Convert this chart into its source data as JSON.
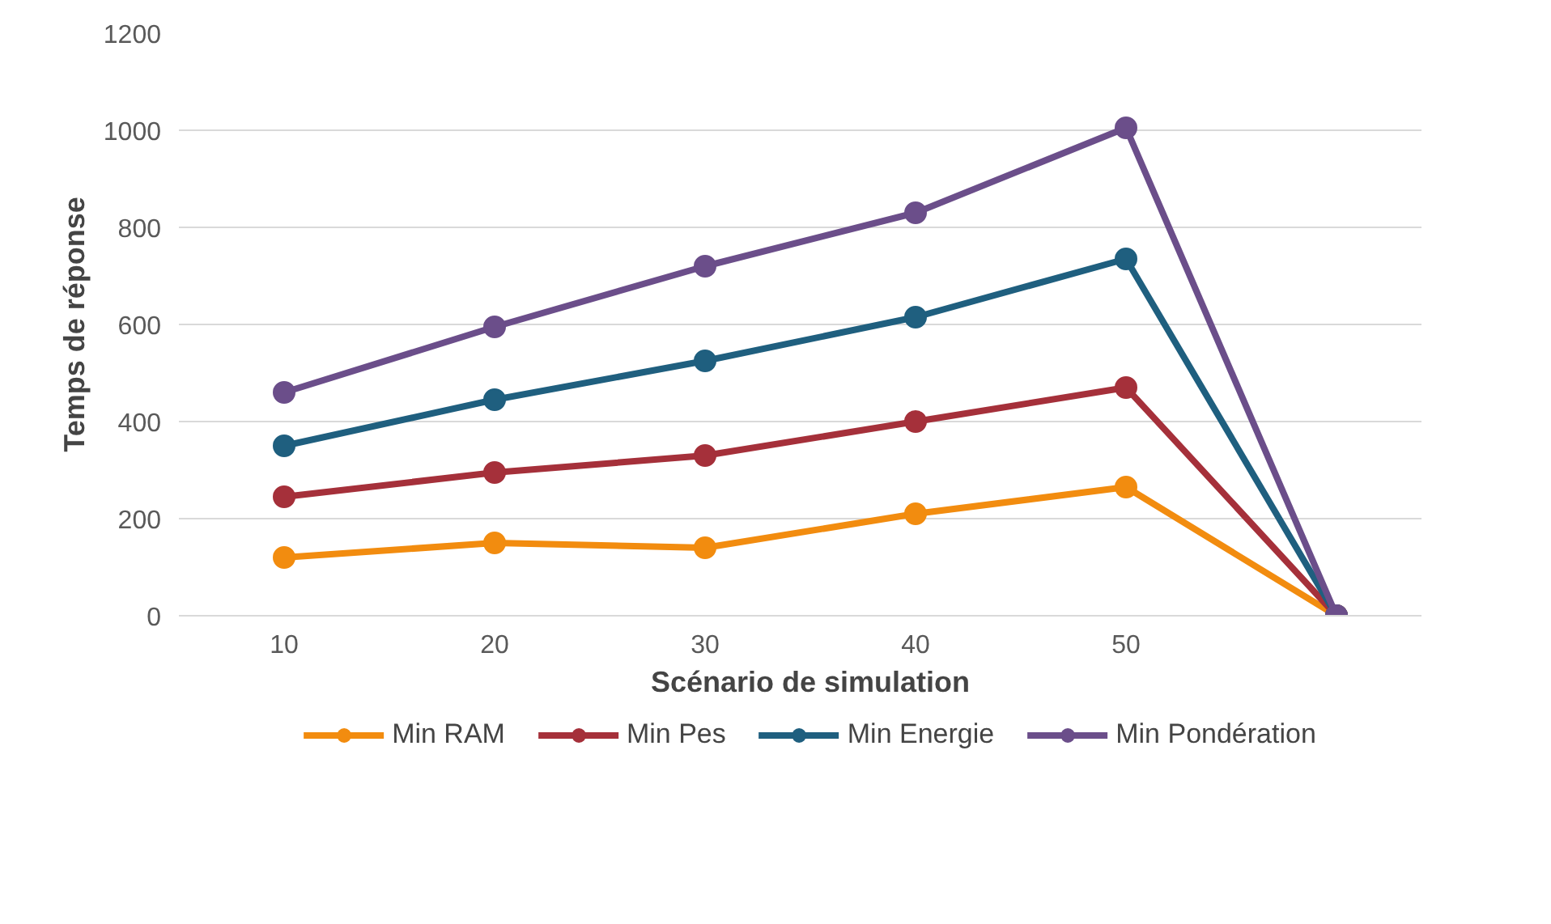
{
  "chart_data": {
    "type": "line",
    "xlabel": "Scénario de simulation",
    "ylabel": "Temps de réponse",
    "categories": [
      "10",
      "20",
      "30",
      "40",
      "50",
      null
    ],
    "ylim": [
      0,
      1200
    ],
    "yticks": [
      0,
      200,
      400,
      600,
      800,
      1000,
      1200
    ],
    "grid": "y",
    "legend": "bottom",
    "marker": "circle",
    "line_style": "solid",
    "series": [
      {
        "name": "Min RAM",
        "color": "#f28c0f",
        "values": [
          120,
          150,
          140,
          210,
          265,
          0
        ]
      },
      {
        "name": "Min Pes",
        "color": "#a5303a",
        "values": [
          245,
          295,
          330,
          400,
          470,
          0
        ]
      },
      {
        "name": "Min Energie",
        "color": "#1f5f7f",
        "values": [
          350,
          445,
          525,
          615,
          735,
          0
        ]
      },
      {
        "name": "Min Pondération",
        "color": "#6b4e8a",
        "values": [
          460,
          595,
          720,
          830,
          1005,
          0
        ]
      }
    ]
  }
}
